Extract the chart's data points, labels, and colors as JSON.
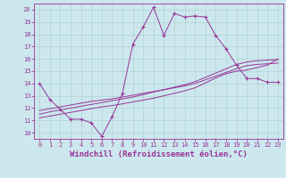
{
  "x": [
    0,
    1,
    2,
    3,
    4,
    5,
    6,
    7,
    8,
    9,
    10,
    11,
    12,
    13,
    14,
    15,
    16,
    17,
    18,
    19,
    20,
    21,
    22,
    23
  ],
  "y_main": [
    14,
    12.7,
    11.9,
    11.1,
    11.1,
    10.8,
    9.7,
    11.3,
    13.2,
    17.2,
    18.6,
    20.2,
    17.9,
    19.7,
    19.4,
    19.5,
    19.4,
    17.9,
    16.8,
    15.5,
    14.4,
    14.4,
    14.1,
    14.1
  ],
  "y_trend1": [
    11.8,
    11.95,
    12.1,
    12.25,
    12.4,
    12.55,
    12.65,
    12.75,
    12.9,
    13.05,
    13.2,
    13.35,
    13.5,
    13.65,
    13.8,
    14.0,
    14.3,
    14.6,
    14.9,
    15.2,
    15.45,
    15.55,
    15.6,
    15.65
  ],
  "y_trend2": [
    11.5,
    11.7,
    11.85,
    12.0,
    12.15,
    12.3,
    12.45,
    12.6,
    12.75,
    12.9,
    13.1,
    13.3,
    13.5,
    13.7,
    13.9,
    14.15,
    14.5,
    14.85,
    15.2,
    15.55,
    15.75,
    15.85,
    15.9,
    15.95
  ],
  "y_trend3": [
    11.2,
    11.35,
    11.5,
    11.65,
    11.8,
    11.95,
    12.1,
    12.2,
    12.35,
    12.5,
    12.65,
    12.8,
    13.0,
    13.2,
    13.4,
    13.65,
    14.05,
    14.45,
    14.8,
    15.0,
    15.1,
    15.3,
    15.5,
    16.0
  ],
  "color": "#993399",
  "bg_color": "#cce8ee",
  "xlabel": "Windchill (Refroidissement éolien,°C)",
  "ylabel_ticks": [
    10,
    11,
    12,
    13,
    14,
    15,
    16,
    17,
    18,
    19,
    20
  ],
  "xlabel_ticks": [
    0,
    1,
    2,
    3,
    4,
    5,
    6,
    7,
    8,
    9,
    10,
    11,
    12,
    13,
    14,
    15,
    16,
    17,
    18,
    19,
    20,
    21,
    22,
    23
  ],
  "ylim": [
    9.5,
    20.5
  ],
  "xlim": [
    -0.5,
    23.5
  ]
}
